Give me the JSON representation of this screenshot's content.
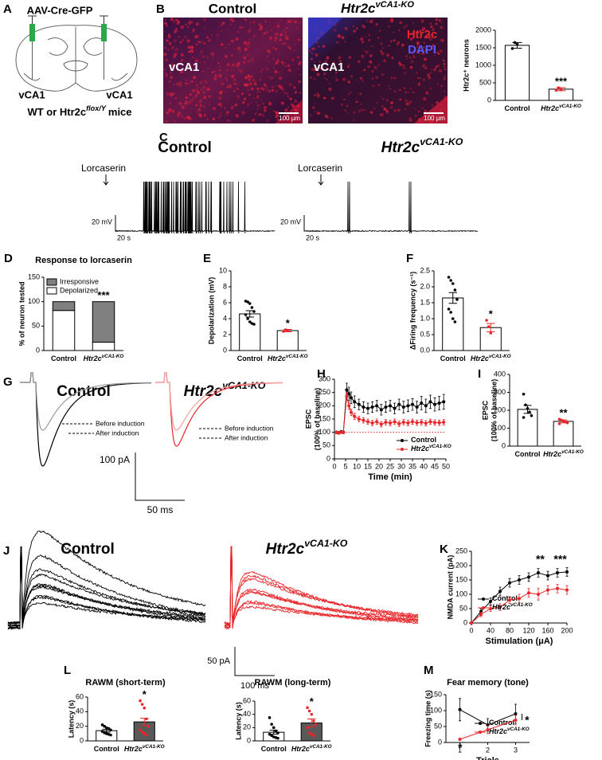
{
  "panel_labels": [
    "A",
    "B",
    "C",
    "D",
    "E",
    "F",
    "G",
    "H",
    "I",
    "J",
    "K",
    "L",
    "M"
  ],
  "genotype": {
    "control": "Control",
    "ko": "Htr2c",
    "ko_sup": "vCA1-KO"
  },
  "schematic": {
    "virus": "AAV-Cre-GFP",
    "region": "vCA1",
    "mice": "WT or Htr2c",
    "mice_sup": "flox/Y",
    "mice_end": "mice"
  },
  "histology": {
    "stain1": "Htr2c",
    "stain2": "DAPI",
    "region": "vCA1",
    "scale": "100 µm"
  },
  "recordings": {
    "drug": "Lorcaserin",
    "c_scale_v": "20 mV",
    "c_scale_t": "20 s",
    "before": "Before induction",
    "after": "After induction",
    "g_scale_i": "100 pA",
    "g_scale_t": "50 ms",
    "j_scale_i": "50 pA",
    "j_scale_t": "100 ms"
  },
  "chart_data": [
    {
      "type": "bar",
      "ylabel": "Htr2c⁺ neurons",
      "categories": [
        "Control",
        "Htr2c"
      ],
      "category_sups": [
        null,
        "vCA1-KO"
      ],
      "values": [
        1570,
        320
      ],
      "errors": [
        80,
        45
      ],
      "points": [
        [
          1480,
          1650,
          1600
        ],
        [
          290,
          360,
          310
        ]
      ],
      "colors": [
        "#ffffff",
        "#ffffff"
      ],
      "point_colors": [
        "#000000",
        "#e8262a"
      ],
      "ylim": [
        0,
        2000
      ],
      "yticks": [
        0,
        500,
        1000,
        1500,
        2000
      ],
      "significance": "***"
    },
    {
      "type": "stacked_bar",
      "title": "Response to lorcaserin",
      "ylabel": "% of neuron tested",
      "categories": [
        "Control",
        "Htr2c"
      ],
      "category_sups": [
        null,
        "vCA1-KO"
      ],
      "series": [
        {
          "name": "Depolarized",
          "color": "#ffffff",
          "values": [
            82,
            17
          ]
        },
        {
          "name": "Irresponsive",
          "color": "#808080",
          "values": [
            18,
            83
          ]
        }
      ],
      "ylim": [
        0,
        150
      ],
      "yticks": [
        0,
        50,
        100,
        150
      ],
      "significance": "***"
    },
    {
      "type": "bar",
      "ylabel": "Depolarization (mV)",
      "categories": [
        "Control",
        "Htr2c"
      ],
      "category_sups": [
        null,
        "vCA1-KO"
      ],
      "values": [
        4.6,
        2.5
      ],
      "errors": [
        0.4,
        0.15
      ],
      "points": [
        [
          6.2,
          6.1,
          5.9,
          5.4,
          4.9,
          4.5,
          4.0,
          3.6,
          3.4,
          3.3
        ],
        [
          2.4,
          2.6,
          2.5
        ]
      ],
      "colors": [
        "#ffffff",
        "#ffffff"
      ],
      "point_colors": [
        "#000000",
        "#e8262a"
      ],
      "ylim": [
        0,
        10
      ],
      "yticks": [
        0,
        2,
        4,
        6,
        8,
        10
      ],
      "significance": "*"
    },
    {
      "type": "bar",
      "ylabel": "ΔFiring frequency (s⁻¹)",
      "categories": [
        "Control",
        "Htr2c"
      ],
      "category_sups": [
        null,
        "vCA1-KO"
      ],
      "values": [
        1.65,
        0.72
      ],
      "errors": [
        0.17,
        0.13
      ],
      "points": [
        [
          2.3,
          2.2,
          2.1,
          1.9,
          1.6,
          1.3,
          1.2,
          1.0,
          0.9
        ],
        [
          0.95,
          0.75,
          0.55
        ]
      ],
      "colors": [
        "#ffffff",
        "#ffffff"
      ],
      "point_colors": [
        "#000000",
        "#e8262a"
      ],
      "ylim": [
        0,
        2.5
      ],
      "yticks": [
        {
          "value": 0,
          "label": "0.0"
        },
        0.5,
        {
          "value": 1,
          "label": "1.0"
        },
        1.5,
        {
          "value": 2,
          "label": "2.0"
        },
        2.5
      ],
      "significance": "*"
    },
    {
      "type": "line",
      "ylabel": [
        "EPSC",
        "(100% of baseline)"
      ],
      "xlabel": "Time (min)",
      "x": [
        1,
        2,
        3,
        4,
        5.5,
        6.5,
        7.5,
        9,
        11,
        13,
        15,
        17,
        19,
        21,
        23,
        25,
        27,
        29,
        31,
        33,
        35,
        37,
        39,
        41,
        43,
        45,
        47,
        49
      ],
      "series": [
        {
          "name": "Control",
          "color": "#000000",
          "values": [
            100,
            98,
            102,
            100,
            260,
            245,
            230,
            215,
            205,
            195,
            190,
            195,
            200,
            185,
            195,
            200,
            190,
            205,
            195,
            200,
            205,
            195,
            210,
            200,
            215,
            205,
            210,
            215
          ],
          "errors": [
            5,
            5,
            5,
            5,
            25,
            25,
            22,
            22,
            20,
            20,
            20,
            20,
            20,
            20,
            20,
            20,
            20,
            20,
            22,
            22,
            22,
            22,
            25,
            25,
            25,
            25,
            25,
            28
          ]
        },
        {
          "name": "Htr2c",
          "name_sup": "vCA1-KO",
          "color": "#e8262a",
          "values": [
            100,
            97,
            101,
            100,
            235,
            200,
            175,
            160,
            150,
            145,
            140,
            135,
            140,
            130,
            138,
            135,
            140,
            132,
            138,
            135,
            140,
            136,
            138,
            134,
            140,
            137,
            136,
            138
          ],
          "errors": [
            4,
            4,
            4,
            4,
            15,
            14,
            12,
            12,
            10,
            10,
            10,
            10,
            10,
            10,
            10,
            10,
            10,
            10,
            10,
            10,
            10,
            10,
            10,
            10,
            10,
            10,
            10,
            10
          ]
        }
      ],
      "xlim": [
        0,
        50
      ],
      "xticks": [
        0,
        5,
        10,
        15,
        20,
        25,
        30,
        35,
        40,
        45,
        50
      ],
      "ylim": [
        0,
        300
      ],
      "yticks": [
        0,
        50,
        100,
        150,
        200,
        250,
        300
      ],
      "hline": 100
    },
    {
      "type": "bar",
      "ylabel": [
        "EPSC",
        "(100% of baseline)"
      ],
      "categories": [
        "Control",
        "Htr2c"
      ],
      "category_sups": [
        null,
        "vCA1-KO"
      ],
      "values": [
        205,
        138
      ],
      "errors": [
        22,
        8
      ],
      "points": [
        [
          290,
          230,
          210,
          190,
          170,
          160
        ],
        [
          150,
          145,
          140,
          135,
          130,
          125
        ]
      ],
      "colors": [
        "#ffffff",
        "#ffffff"
      ],
      "point_colors": [
        "#000000",
        "#e8262a"
      ],
      "ylim": [
        0,
        400
      ],
      "yticks": [
        0,
        100,
        200,
        300,
        400
      ],
      "significance": "**"
    },
    {
      "type": "line",
      "ylabel": "NMDA current (pA)",
      "xlabel": "Stimulation (μA)",
      "x": [
        0,
        20,
        40,
        60,
        80,
        100,
        120,
        140,
        160,
        180,
        200
      ],
      "series": [
        {
          "name": "Control",
          "color": "#000000",
          "values": [
            0,
            40,
            75,
            110,
            140,
            150,
            160,
            175,
            165,
            175,
            178
          ],
          "errors": [
            0,
            10,
            12,
            15,
            15,
            15,
            15,
            15,
            15,
            15,
            15
          ]
        },
        {
          "name": "Htr2c",
          "name_sup": "vCA1-KO",
          "color": "#e8262a",
          "values": [
            0,
            30,
            50,
            55,
            80,
            85,
            105,
            100,
            115,
            120,
            115
          ],
          "errors": [
            0,
            8,
            10,
            12,
            12,
            15,
            15,
            20,
            15,
            15,
            15
          ]
        }
      ],
      "xlim": [
        0,
        200
      ],
      "xticks": [
        0,
        40,
        80,
        120,
        160,
        200
      ],
      "ylim": [
        0,
        250
      ],
      "yticks": [
        0,
        50,
        100,
        150,
        200,
        250
      ],
      "annotations": [
        "**",
        "***"
      ]
    },
    {
      "type": "bar",
      "title": "RAWM (short-term)",
      "ylabel": "Latency (s)",
      "categories": [
        "Control",
        "Htr2c"
      ],
      "category_sups": [
        null,
        "vCA1-KO"
      ],
      "values": [
        14,
        26
      ],
      "errors": [
        2,
        5
      ],
      "points": [
        [
          22,
          20,
          18,
          17,
          15,
          13,
          11,
          10,
          9,
          8
        ],
        [
          55,
          50,
          45,
          30,
          20,
          15,
          12,
          10,
          8
        ]
      ],
      "colors": [
        "#ffffff",
        "#595959"
      ],
      "point_colors": [
        "#000000",
        "#e8262a"
      ],
      "ylim": [
        0,
        60
      ],
      "yticks": [
        0,
        20,
        40,
        60
      ],
      "significance": "*"
    },
    {
      "type": "bar",
      "title": "RAWM (long-term)",
      "ylabel": "Latency (s)",
      "categories": [
        "Control",
        "Htr2c"
      ],
      "category_sups": [
        null,
        "vCA1-KO"
      ],
      "values": [
        13,
        27
      ],
      "errors": [
        3,
        6
      ],
      "points": [
        [
          35,
          25,
          20,
          15,
          12,
          10,
          8,
          6,
          5,
          4
        ],
        [
          50,
          45,
          40,
          30,
          25,
          20,
          12,
          10,
          8
        ]
      ],
      "colors": [
        "#ffffff",
        "#595959"
      ],
      "point_colors": [
        "#000000",
        "#e8262a"
      ],
      "ylim": [
        0,
        60
      ],
      "yticks": [
        0,
        20,
        40,
        60
      ],
      "significance": "*"
    },
    {
      "type": "line",
      "title": "Fear memory (tone)",
      "ylabel": "Freezing time (s)",
      "xlabel": "Trials",
      "x": [
        1,
        2,
        3
      ],
      "series": [
        {
          "name": "Control",
          "color": "#000000",
          "values": [
            103,
            55,
            90
          ],
          "errors": [
            35,
            20,
            30
          ]
        },
        {
          "name": "Htr2c",
          "name_sup": "vCA1-KO",
          "color": "#e8262a",
          "values": [
            10,
            40,
            70
          ],
          "errors": [
            3,
            12,
            15
          ]
        }
      ],
      "xlim": [
        0.5,
        3.5
      ],
      "xticks": [
        1,
        2,
        3
      ],
      "ylim": [
        0,
        150
      ],
      "yticks": [
        0,
        50,
        100,
        150
      ],
      "annotations": [
        "*",
        "*"
      ]
    }
  ]
}
